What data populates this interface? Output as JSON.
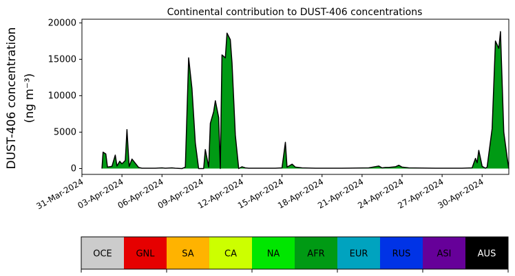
{
  "chart_data": {
    "type": "area",
    "title": "Continental contribution to DUST-406 concentrations",
    "ylabel_line1": "DUST-406 concentration",
    "ylabel_line2": "(ng m⁻³)",
    "xlabel": "",
    "ylim": [
      -800,
      20500
    ],
    "xlim": [
      "2024-03-31T00:00",
      "2024-05-02T00:00"
    ],
    "yticks": [
      0,
      5000,
      10000,
      15000,
      20000
    ],
    "yticklabels": [
      "0",
      "5000",
      "10000",
      "15000",
      "20000"
    ],
    "xticks": [
      "2024-03-31",
      "2024-04-03",
      "2024-04-06",
      "2024-04-09",
      "2024-04-12",
      "2024-04-15",
      "2024-04-18",
      "2024-04-21",
      "2024-04-24",
      "2024-04-27",
      "2024-04-30"
    ],
    "xticklabels": [
      "31-Mar-2024",
      "03-Apr-2024",
      "06-Apr-2024",
      "09-Apr-2024",
      "12-Apr-2024",
      "15-Apr-2024",
      "18-Apr-2024",
      "21-Apr-2024",
      "24-Apr-2024",
      "27-Apr-2024",
      "30-Apr-2024"
    ],
    "grid": false,
    "total_line_color": "#000000",
    "series": [
      {
        "name": "AFR",
        "color": "#009a14",
        "points": [
          [
            "2024-04-01T12:00",
            0
          ],
          [
            "2024-04-01T14:00",
            2250
          ],
          [
            "2024-04-01T19:00",
            2000
          ],
          [
            "2024-04-01T22:00",
            200
          ],
          [
            "2024-04-02T06:00",
            300
          ],
          [
            "2024-04-02T12:00",
            1850
          ],
          [
            "2024-04-02T15:00",
            350
          ],
          [
            "2024-04-02T20:00",
            1000
          ],
          [
            "2024-04-03T00:00",
            650
          ],
          [
            "2024-04-03T06:00",
            1100
          ],
          [
            "2024-04-03T09:00",
            5350
          ],
          [
            "2024-04-03T13:00",
            300
          ],
          [
            "2024-04-03T18:00",
            1300
          ],
          [
            "2024-04-04T06:00",
            150
          ],
          [
            "2024-04-04T12:00",
            50
          ],
          [
            "2024-04-05T12:00",
            50
          ],
          [
            "2024-04-06T00:00",
            100
          ],
          [
            "2024-04-06T06:00",
            50
          ],
          [
            "2024-04-06T18:00",
            100
          ],
          [
            "2024-04-07T00:00",
            50
          ],
          [
            "2024-04-07T12:00",
            0
          ],
          [
            "2024-04-07T18:00",
            200
          ],
          [
            "2024-04-08T00:00",
            15200
          ],
          [
            "2024-04-08T06:00",
            11000
          ],
          [
            "2024-04-08T12:00",
            3500
          ],
          [
            "2024-04-08T18:00",
            0
          ],
          [
            "2024-04-09T03:00",
            0
          ],
          [
            "2024-04-09T06:00",
            2600
          ],
          [
            "2024-04-09T12:00",
            200
          ],
          [
            "2024-04-09T15:00",
            6200
          ],
          [
            "2024-04-09T21:00",
            7800
          ],
          [
            "2024-04-10T00:00",
            9300
          ],
          [
            "2024-04-10T06:00",
            7000
          ],
          [
            "2024-04-10T09:00",
            0
          ],
          [
            "2024-04-10T12:00",
            15600
          ],
          [
            "2024-04-10T18:00",
            15200
          ],
          [
            "2024-04-10T21:00",
            18600
          ],
          [
            "2024-04-11T03:00",
            17700
          ],
          [
            "2024-04-11T06:00",
            14500
          ],
          [
            "2024-04-11T12:00",
            4600
          ],
          [
            "2024-04-11T18:00",
            0
          ],
          [
            "2024-04-12T00:00",
            250
          ],
          [
            "2024-04-12T06:00",
            100
          ],
          [
            "2024-04-12T12:00",
            50
          ],
          [
            "2024-04-14T12:00",
            50
          ],
          [
            "2024-04-15T00:00",
            100
          ],
          [
            "2024-04-15T06:00",
            3600
          ],
          [
            "2024-04-15T09:00",
            200
          ],
          [
            "2024-04-15T18:00",
            600
          ],
          [
            "2024-04-16T00:00",
            200
          ],
          [
            "2024-04-16T12:00",
            100
          ],
          [
            "2024-04-17T12:00",
            50
          ],
          [
            "2024-04-19T12:00",
            50
          ],
          [
            "2024-04-21T12:00",
            100
          ],
          [
            "2024-04-22T06:00",
            350
          ],
          [
            "2024-04-22T12:00",
            100
          ],
          [
            "2024-04-22T18:00",
            150
          ],
          [
            "2024-04-23T00:00",
            150
          ],
          [
            "2024-04-23T12:00",
            250
          ],
          [
            "2024-04-23T18:00",
            450
          ],
          [
            "2024-04-24T00:00",
            200
          ],
          [
            "2024-04-24T12:00",
            100
          ],
          [
            "2024-04-26T12:00",
            50
          ],
          [
            "2024-04-28T12:00",
            50
          ],
          [
            "2024-04-29T06:00",
            100
          ],
          [
            "2024-04-29T12:00",
            1400
          ],
          [
            "2024-04-29T15:00",
            800
          ],
          [
            "2024-04-29T18:00",
            2500
          ],
          [
            "2024-04-30T00:00",
            300
          ],
          [
            "2024-04-30T06:00",
            50
          ],
          [
            "2024-04-30T09:00",
            200
          ],
          [
            "2024-04-30T18:00",
            5500
          ],
          [
            "2024-05-01T00:00",
            17500
          ],
          [
            "2024-05-01T06:00",
            16500
          ],
          [
            "2024-05-01T09:00",
            18800
          ],
          [
            "2024-05-01T15:00",
            5000
          ],
          [
            "2024-05-01T21:00",
            1500
          ],
          [
            "2024-05-02T00:00",
            0
          ]
        ]
      }
    ],
    "colorbar": {
      "regions": [
        "OCE",
        "GNL",
        "SA",
        "CA",
        "NA",
        "AFR",
        "EUR",
        "RUS",
        "ASI",
        "AUS"
      ],
      "colors": [
        "#cccccc",
        "#e60000",
        "#ffb300",
        "#ccff00",
        "#00e600",
        "#009a14",
        "#00a3bf",
        "#0033e6",
        "#660099",
        "#000000"
      ],
      "label_colors": [
        "#000000",
        "#000000",
        "#000000",
        "#000000",
        "#000000",
        "#000000",
        "#000000",
        "#000000",
        "#000000",
        "#ffffff"
      ]
    }
  }
}
